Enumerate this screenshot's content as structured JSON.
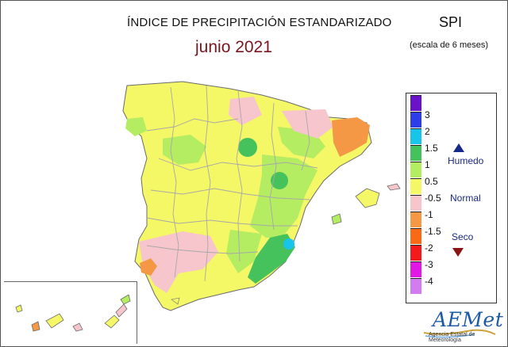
{
  "header": {
    "title": "ÍNDICE DE PRECIPITACIÓN ESTANDARIZADO",
    "subtitle": "junio 2021",
    "index_name": "SPI",
    "scale_note": "(escala de 6 meses)"
  },
  "legend": {
    "bins": [
      {
        "color": "#6a12c8"
      },
      {
        "color": "#2d3ee6"
      },
      {
        "color": "#18c4ea"
      },
      {
        "color": "#46c25c"
      },
      {
        "color": "#b4ec62"
      },
      {
        "color": "#f4f766"
      },
      {
        "color": "#f6c6cc"
      },
      {
        "color": "#f49846"
      },
      {
        "color": "#f86a16"
      },
      {
        "color": "#f21a1a"
      },
      {
        "color": "#e018e4"
      },
      {
        "color": "#d27cf0"
      }
    ],
    "ticks": [
      "3",
      "2",
      "1.5",
      "1",
      "0.5",
      "-0.5",
      "-1",
      "-1.5",
      "-2",
      "-3",
      "-4"
    ],
    "labels": {
      "wet": "Humedo",
      "normal": "Normal",
      "dry": "Seco"
    }
  },
  "logo": {
    "name": "AEMet",
    "subtitle": "Agencia Estatal de Meteorología"
  },
  "colors": {
    "boundaries": "#a8a8a8",
    "background": "#ffffff",
    "title_accent": "#7a1620"
  }
}
